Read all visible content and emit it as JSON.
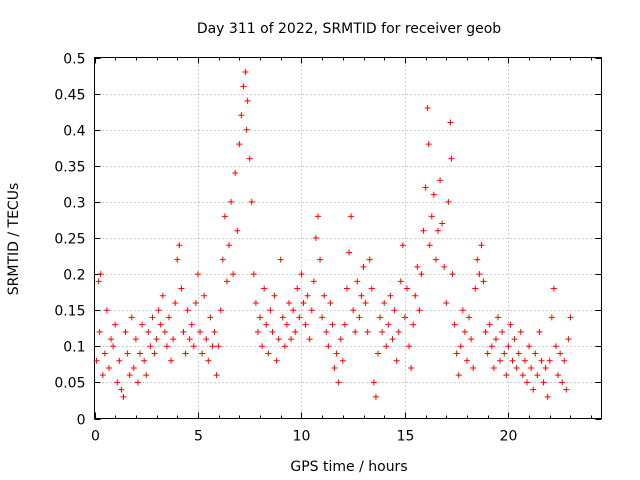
{
  "chart_data": {
    "type": "scatter",
    "title": "Day 311 of 2022, SRMTID for receiver geob",
    "xlabel": "GPS time / hours",
    "ylabel": "SRMTID / TECUs",
    "xlim": [
      0,
      24.5
    ],
    "ylim": [
      0,
      0.5
    ],
    "xticks": [
      0,
      5,
      10,
      15,
      20
    ],
    "yticks": [
      0,
      0.05,
      0.1,
      0.15,
      0.2,
      0.25,
      0.3,
      0.35,
      0.4,
      0.45,
      0.5
    ],
    "grid": true,
    "marker": "+",
    "color": "#ff0000",
    "series": [
      {
        "name": "SRMTID",
        "points": [
          [
            0.1,
            0.08
          ],
          [
            0.2,
            0.19
          ],
          [
            0.25,
            0.12
          ],
          [
            0.3,
            0.2
          ],
          [
            0.4,
            0.06
          ],
          [
            0.5,
            0.09
          ],
          [
            0.6,
            0.15
          ],
          [
            0.7,
            0.07
          ],
          [
            0.8,
            0.11
          ],
          [
            0.9,
            0.1
          ],
          [
            1.0,
            0.13
          ],
          [
            1.1,
            0.05
          ],
          [
            1.2,
            0.08
          ],
          [
            1.3,
            0.04
          ],
          [
            1.4,
            0.03
          ],
          [
            1.5,
            0.12
          ],
          [
            1.6,
            0.09
          ],
          [
            1.7,
            0.06
          ],
          [
            1.8,
            0.14
          ],
          [
            1.9,
            0.07
          ],
          [
            2.0,
            0.11
          ],
          [
            2.1,
            0.05
          ],
          [
            2.2,
            0.09
          ],
          [
            2.3,
            0.13
          ],
          [
            2.4,
            0.08
          ],
          [
            2.5,
            0.06
          ],
          [
            2.6,
            0.12
          ],
          [
            2.7,
            0.1
          ],
          [
            2.8,
            0.14
          ],
          [
            2.9,
            0.09
          ],
          [
            3.0,
            0.11
          ],
          [
            3.1,
            0.15
          ],
          [
            3.2,
            0.13
          ],
          [
            3.3,
            0.17
          ],
          [
            3.4,
            0.12
          ],
          [
            3.5,
            0.1
          ],
          [
            3.6,
            0.14
          ],
          [
            3.7,
            0.08
          ],
          [
            3.8,
            0.11
          ],
          [
            3.9,
            0.16
          ],
          [
            4.0,
            0.22
          ],
          [
            4.1,
            0.24
          ],
          [
            4.2,
            0.18
          ],
          [
            4.3,
            0.12
          ],
          [
            4.4,
            0.09
          ],
          [
            4.5,
            0.15
          ],
          [
            4.6,
            0.11
          ],
          [
            4.7,
            0.13
          ],
          [
            4.8,
            0.1
          ],
          [
            4.9,
            0.16
          ],
          [
            5.0,
            0.2
          ],
          [
            5.1,
            0.12
          ],
          [
            5.2,
            0.09
          ],
          [
            5.3,
            0.17
          ],
          [
            5.4,
            0.11
          ],
          [
            5.5,
            0.08
          ],
          [
            5.6,
            0.14
          ],
          [
            5.7,
            0.1
          ],
          [
            5.8,
            0.12
          ],
          [
            5.9,
            0.06
          ],
          [
            6.0,
            0.1
          ],
          [
            6.1,
            0.15
          ],
          [
            6.2,
            0.22
          ],
          [
            6.3,
            0.28
          ],
          [
            6.4,
            0.19
          ],
          [
            6.5,
            0.24
          ],
          [
            6.6,
            0.3
          ],
          [
            6.7,
            0.2
          ],
          [
            6.8,
            0.34
          ],
          [
            6.9,
            0.26
          ],
          [
            7.0,
            0.38
          ],
          [
            7.1,
            0.42
          ],
          [
            7.2,
            0.46
          ],
          [
            7.3,
            0.48
          ],
          [
            7.35,
            0.4
          ],
          [
            7.4,
            0.44
          ],
          [
            7.5,
            0.36
          ],
          [
            7.6,
            0.3
          ],
          [
            7.7,
            0.2
          ],
          [
            7.8,
            0.16
          ],
          [
            7.9,
            0.12
          ],
          [
            8.0,
            0.14
          ],
          [
            8.1,
            0.1
          ],
          [
            8.2,
            0.18
          ],
          [
            8.3,
            0.13
          ],
          [
            8.4,
            0.09
          ],
          [
            8.5,
            0.15
          ],
          [
            8.6,
            0.12
          ],
          [
            8.7,
            0.17
          ],
          [
            8.8,
            0.08
          ],
          [
            8.9,
            0.11
          ],
          [
            9.0,
            0.22
          ],
          [
            9.1,
            0.14
          ],
          [
            9.2,
            0.1
          ],
          [
            9.3,
            0.13
          ],
          [
            9.4,
            0.16
          ],
          [
            9.5,
            0.11
          ],
          [
            9.6,
            0.15
          ],
          [
            9.7,
            0.12
          ],
          [
            9.8,
            0.18
          ],
          [
            9.9,
            0.14
          ],
          [
            10.0,
            0.2
          ],
          [
            10.1,
            0.16
          ],
          [
            10.2,
            0.13
          ],
          [
            10.3,
            0.17
          ],
          [
            10.4,
            0.11
          ],
          [
            10.5,
            0.15
          ],
          [
            10.6,
            0.19
          ],
          [
            10.7,
            0.25
          ],
          [
            10.8,
            0.28
          ],
          [
            10.9,
            0.22
          ],
          [
            11.0,
            0.14
          ],
          [
            11.1,
            0.17
          ],
          [
            11.2,
            0.12
          ],
          [
            11.3,
            0.1
          ],
          [
            11.4,
            0.16
          ],
          [
            11.5,
            0.13
          ],
          [
            11.6,
            0.07
          ],
          [
            11.7,
            0.09
          ],
          [
            11.8,
            0.05
          ],
          [
            11.9,
            0.11
          ],
          [
            12.0,
            0.08
          ],
          [
            12.1,
            0.13
          ],
          [
            12.2,
            0.18
          ],
          [
            12.3,
            0.23
          ],
          [
            12.4,
            0.28
          ],
          [
            12.5,
            0.15
          ],
          [
            12.6,
            0.12
          ],
          [
            12.7,
            0.19
          ],
          [
            12.8,
            0.14
          ],
          [
            12.9,
            0.17
          ],
          [
            13.0,
            0.21
          ],
          [
            13.1,
            0.16
          ],
          [
            13.2,
            0.12
          ],
          [
            13.3,
            0.22
          ],
          [
            13.4,
            0.18
          ],
          [
            13.5,
            0.05
          ],
          [
            13.6,
            0.03
          ],
          [
            13.7,
            0.09
          ],
          [
            13.8,
            0.14
          ],
          [
            13.9,
            0.12
          ],
          [
            14.0,
            0.16
          ],
          [
            14.1,
            0.1
          ],
          [
            14.2,
            0.13
          ],
          [
            14.3,
            0.17
          ],
          [
            14.4,
            0.11
          ],
          [
            14.5,
            0.15
          ],
          [
            14.6,
            0.08
          ],
          [
            14.7,
            0.12
          ],
          [
            14.8,
            0.19
          ],
          [
            14.9,
            0.24
          ],
          [
            15.0,
            0.14
          ],
          [
            15.1,
            0.18
          ],
          [
            15.2,
            0.1
          ],
          [
            15.3,
            0.07
          ],
          [
            15.4,
            0.13
          ],
          [
            15.5,
            0.17
          ],
          [
            15.6,
            0.21
          ],
          [
            15.7,
            0.15
          ],
          [
            15.8,
            0.2
          ],
          [
            15.9,
            0.26
          ],
          [
            16.0,
            0.32
          ],
          [
            16.1,
            0.43
          ],
          [
            16.15,
            0.38
          ],
          [
            16.2,
            0.24
          ],
          [
            16.3,
            0.28
          ],
          [
            16.4,
            0.31
          ],
          [
            16.5,
            0.22
          ],
          [
            16.6,
            0.26
          ],
          [
            16.7,
            0.33
          ],
          [
            16.8,
            0.27
          ],
          [
            16.9,
            0.21
          ],
          [
            17.0,
            0.16
          ],
          [
            17.1,
            0.3
          ],
          [
            17.2,
            0.41
          ],
          [
            17.25,
            0.36
          ],
          [
            17.3,
            0.2
          ],
          [
            17.4,
            0.13
          ],
          [
            17.5,
            0.09
          ],
          [
            17.6,
            0.06
          ],
          [
            17.7,
            0.1
          ],
          [
            17.8,
            0.15
          ],
          [
            17.9,
            0.12
          ],
          [
            18.0,
            0.08
          ],
          [
            18.1,
            0.14
          ],
          [
            18.2,
            0.11
          ],
          [
            18.3,
            0.07
          ],
          [
            18.4,
            0.18
          ],
          [
            18.5,
            0.22
          ],
          [
            18.6,
            0.2
          ],
          [
            18.7,
            0.24
          ],
          [
            18.8,
            0.19
          ],
          [
            18.9,
            0.12
          ],
          [
            19.0,
            0.09
          ],
          [
            19.1,
            0.13
          ],
          [
            19.2,
            0.1
          ],
          [
            19.3,
            0.07
          ],
          [
            19.4,
            0.11
          ],
          [
            19.5,
            0.14
          ],
          [
            19.6,
            0.08
          ],
          [
            19.7,
            0.12
          ],
          [
            19.8,
            0.09
          ],
          [
            19.9,
            0.06
          ],
          [
            20.0,
            0.1
          ],
          [
            20.1,
            0.13
          ],
          [
            20.2,
            0.08
          ],
          [
            20.3,
            0.11
          ],
          [
            20.4,
            0.07
          ],
          [
            20.5,
            0.09
          ],
          [
            20.6,
            0.12
          ],
          [
            20.7,
            0.06
          ],
          [
            20.8,
            0.08
          ],
          [
            20.9,
            0.05
          ],
          [
            21.0,
            0.1
          ],
          [
            21.1,
            0.07
          ],
          [
            21.2,
            0.04
          ],
          [
            21.3,
            0.09
          ],
          [
            21.4,
            0.06
          ],
          [
            21.5,
            0.12
          ],
          [
            21.6,
            0.08
          ],
          [
            21.7,
            0.05
          ],
          [
            21.8,
            0.07
          ],
          [
            21.9,
            0.03
          ],
          [
            22.0,
            0.08
          ],
          [
            22.1,
            0.14
          ],
          [
            22.2,
            0.18
          ],
          [
            22.3,
            0.1
          ],
          [
            22.4,
            0.06
          ],
          [
            22.5,
            0.09
          ],
          [
            22.6,
            0.05
          ],
          [
            22.7,
            0.08
          ],
          [
            22.8,
            0.04
          ],
          [
            22.9,
            0.11
          ],
          [
            23.0,
            0.14
          ]
        ]
      }
    ]
  }
}
